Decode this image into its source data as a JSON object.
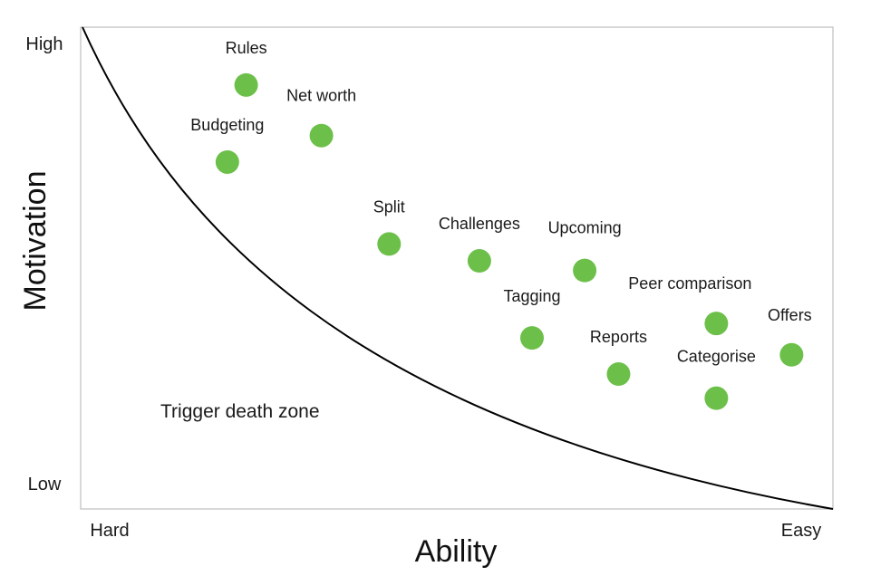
{
  "chart_data": {
    "type": "scatter",
    "title": "",
    "xlabel": "Ability",
    "ylabel": "Motivation",
    "x_ticks": [
      "Hard",
      "Easy"
    ],
    "y_ticks": [
      "High",
      "Low"
    ],
    "xlim": [
      0,
      100
    ],
    "ylim": [
      0,
      100
    ],
    "grid": false,
    "legend": "none",
    "point_color": "#6cc04a",
    "curve_color": "#000000",
    "annotation": "Trigger death zone",
    "points": [
      {
        "label": "Rules",
        "x": 22,
        "y": 88
      },
      {
        "label": "Net worth",
        "x": 32,
        "y": 77.5
      },
      {
        "label": "Budgeting",
        "x": 19.5,
        "y": 72
      },
      {
        "label": "Split",
        "x": 41,
        "y": 55
      },
      {
        "label": "Challenges",
        "x": 53,
        "y": 51.5
      },
      {
        "label": "Upcoming",
        "x": 67,
        "y": 49.5
      },
      {
        "label": "Tagging",
        "x": 60,
        "y": 35.5
      },
      {
        "label": "Reports",
        "x": 71.5,
        "y": 28
      },
      {
        "label": "Peer comparison",
        "x": 84.5,
        "y": 38.5
      },
      {
        "label": "Offers",
        "x": 94.5,
        "y": 32
      },
      {
        "label": "Categorise",
        "x": 84.5,
        "y": 23
      }
    ]
  }
}
